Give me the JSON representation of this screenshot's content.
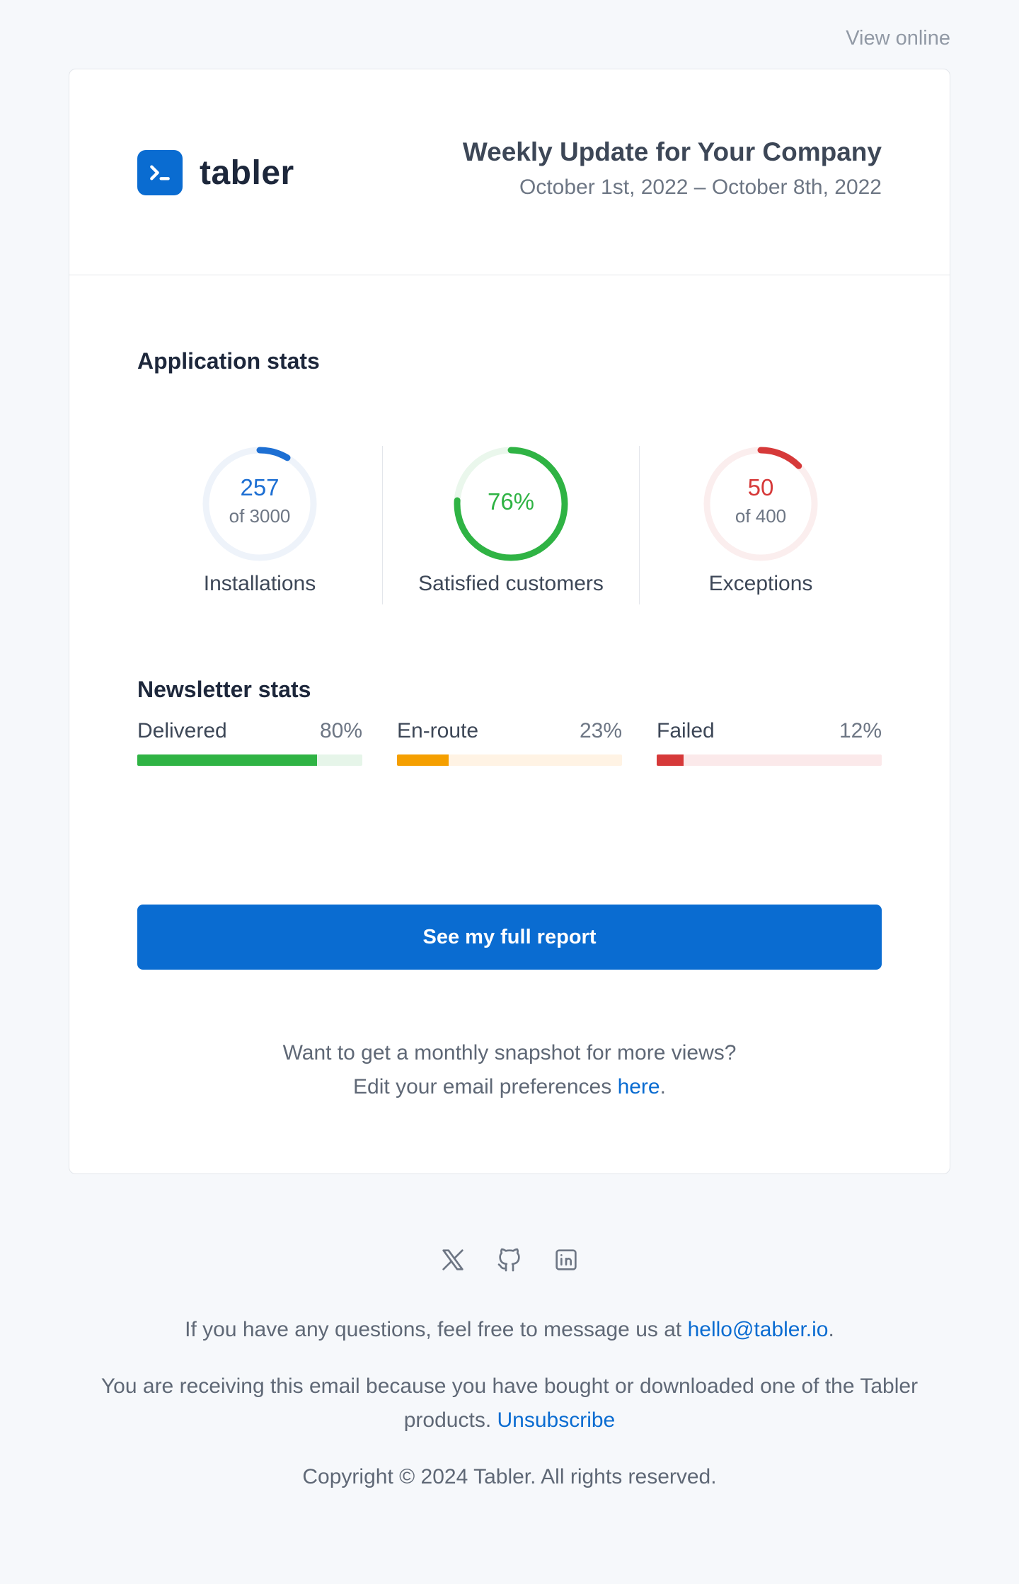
{
  "topbar": {
    "view_online": "View online"
  },
  "header": {
    "logo_text": "tabler",
    "title": "Weekly Update for Your Company",
    "date_range": "October 1st, 2022 – October 8th, 2022"
  },
  "app_stats": {
    "title": "Application stats",
    "items": [
      {
        "value": "257",
        "of": "of 3000",
        "label": "Installations",
        "fraction": 0.0857,
        "color": "#1d6fd3",
        "track": "#eef3fa"
      },
      {
        "value": "76%",
        "of": "",
        "label": "Satisfied customers",
        "fraction": 0.76,
        "color": "#2fb344",
        "track": "#eaf7ec"
      },
      {
        "value": "50",
        "of": "of 400",
        "label": "Exceptions",
        "fraction": 0.125,
        "color": "#d63939",
        "track": "#fbeeee"
      }
    ]
  },
  "newsletter": {
    "title": "Newsletter stats",
    "items": [
      {
        "label": "Delivered",
        "percent": "80%",
        "fraction": 0.8,
        "color": "#2fb344",
        "track": "#e6f5e9"
      },
      {
        "label": "En-route",
        "percent": "23%",
        "fraction": 0.23,
        "color": "#f59f00",
        "track": "#fff3e4"
      },
      {
        "label": "Failed",
        "percent": "12%",
        "fraction": 0.12,
        "color": "#d63939",
        "track": "#fbe9ea"
      }
    ]
  },
  "cta": {
    "label": "See my full report"
  },
  "note": {
    "line1": "Want to get a monthly snapshot for more views?",
    "line2_prefix": "Edit your email preferences ",
    "link": "here",
    "line2_suffix": "."
  },
  "footer": {
    "social_icons": [
      "x-icon",
      "github-icon",
      "linkedin-icon"
    ],
    "contact_prefix": "If you have any questions, feel free to message us at ",
    "contact_email": "hello@tabler.io",
    "contact_suffix": ".",
    "receiving_text": "You are receiving this email because you have bought or downloaded one of the Tabler products. ",
    "unsubscribe": "Unsubscribe",
    "copyright": "Copyright © 2024 Tabler. All rights reserved."
  },
  "colors": {
    "accent": "#0a6cd1",
    "background": "#f6f8fb"
  }
}
